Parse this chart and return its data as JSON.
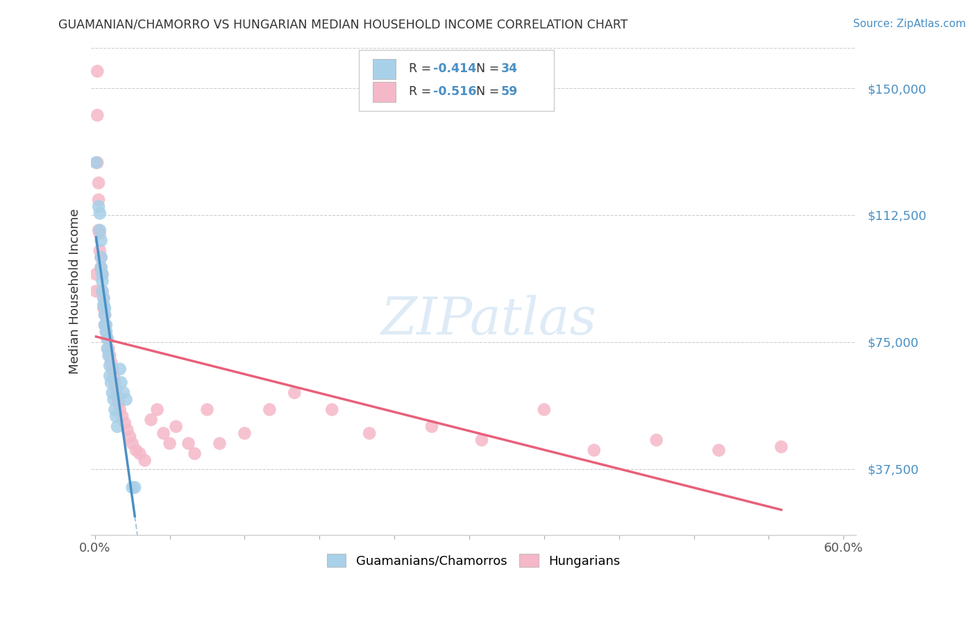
{
  "title": "GUAMANIAN/CHAMORRO VS HUNGARIAN MEDIAN HOUSEHOLD INCOME CORRELATION CHART",
  "source": "Source: ZipAtlas.com",
  "ylabel": "Median Household Income",
  "ytick_labels": [
    "$37,500",
    "$75,000",
    "$112,500",
    "$150,000"
  ],
  "ytick_values": [
    37500,
    75000,
    112500,
    150000
  ],
  "ymin": 18000,
  "ymax": 162000,
  "xmin": -0.003,
  "xmax": 0.61,
  "label1": "Guamanians/Chamorros",
  "label2": "Hungarians",
  "color1": "#a8d0e8",
  "color2": "#f5b8c8",
  "trendline1_color": "#4a90c4",
  "trendline2_color": "#e8607a",
  "dashed_line_color": "#aac8dc",
  "background_color": "#ffffff",
  "watermark": "ZIPatlas",
  "guam_x": [
    0.001,
    0.003,
    0.004,
    0.004,
    0.005,
    0.005,
    0.005,
    0.006,
    0.006,
    0.006,
    0.007,
    0.007,
    0.008,
    0.008,
    0.008,
    0.009,
    0.009,
    0.01,
    0.01,
    0.011,
    0.012,
    0.012,
    0.013,
    0.014,
    0.015,
    0.016,
    0.017,
    0.018,
    0.02,
    0.021,
    0.023,
    0.025,
    0.03,
    0.032
  ],
  "guam_y": [
    128000,
    115000,
    113000,
    108000,
    105000,
    100000,
    97000,
    95000,
    93000,
    90000,
    88000,
    86000,
    85000,
    83000,
    80000,
    80000,
    78000,
    76000,
    73000,
    71000,
    68000,
    65000,
    63000,
    60000,
    58000,
    55000,
    53000,
    50000,
    67000,
    63000,
    60000,
    58000,
    32000,
    32000
  ],
  "hung_x": [
    0.001,
    0.001,
    0.002,
    0.002,
    0.002,
    0.003,
    0.003,
    0.003,
    0.004,
    0.004,
    0.005,
    0.005,
    0.006,
    0.006,
    0.007,
    0.007,
    0.008,
    0.008,
    0.009,
    0.01,
    0.011,
    0.012,
    0.013,
    0.014,
    0.015,
    0.016,
    0.017,
    0.018,
    0.019,
    0.02,
    0.022,
    0.024,
    0.026,
    0.028,
    0.03,
    0.033,
    0.036,
    0.04,
    0.045,
    0.05,
    0.055,
    0.06,
    0.065,
    0.075,
    0.08,
    0.09,
    0.1,
    0.12,
    0.14,
    0.16,
    0.19,
    0.22,
    0.27,
    0.31,
    0.36,
    0.4,
    0.45,
    0.5,
    0.55
  ],
  "hung_y": [
    95000,
    90000,
    155000,
    142000,
    128000,
    122000,
    117000,
    108000,
    107000,
    102000,
    100000,
    97000,
    95000,
    90000,
    88000,
    85000,
    83000,
    80000,
    78000,
    76000,
    73000,
    71000,
    69000,
    67000,
    65000,
    63000,
    61000,
    59000,
    57000,
    55000,
    53000,
    51000,
    49000,
    47000,
    45000,
    43000,
    42000,
    40000,
    52000,
    55000,
    48000,
    45000,
    50000,
    45000,
    42000,
    55000,
    45000,
    48000,
    55000,
    60000,
    55000,
    48000,
    50000,
    46000,
    55000,
    43000,
    46000,
    43000,
    44000
  ]
}
